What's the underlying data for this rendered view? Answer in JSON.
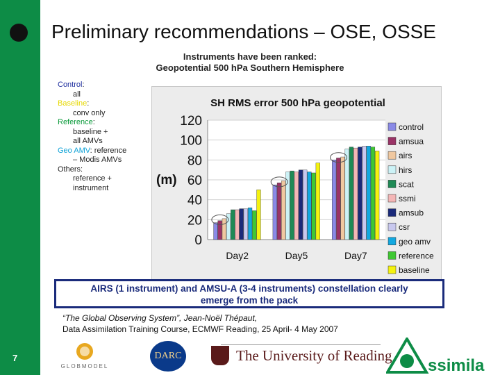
{
  "slide": {
    "title": "Preliminary recommendations – OSE, OSSE",
    "subtitle_line1": "Instruments have been ranked:",
    "subtitle_line2": "Geopotential 500 hPa Southern Hemisphere",
    "page_number": "7",
    "accent_color": "#0d8c46"
  },
  "experiments": [
    {
      "name": "Control",
      "name_color": "#1f2f9f",
      "desc": [
        "all"
      ]
    },
    {
      "name": "Baseline",
      "name_color": "#e6d800",
      "desc": [
        "conv only"
      ]
    },
    {
      "name": "Reference",
      "name_color": "#0a9a3a",
      "desc": [
        "baseline +",
        "all AMVs"
      ]
    },
    {
      "name": "Geo AMV",
      "name_color": "#0aa0d6",
      "desc": [
        "– Modis AMVs"
      ],
      "suffix": ": reference"
    },
    {
      "name": "Others:",
      "name_color": "#222222",
      "desc": [
        "reference +",
        "instrument"
      ]
    }
  ],
  "chart_data": {
    "type": "bar",
    "title": "SH RMS error 500 hPa geopotential",
    "ylabel": "(m)",
    "ylim": [
      0,
      120
    ],
    "yticks": [
      "0",
      "20",
      "40",
      "60",
      "80",
      "100",
      "120"
    ],
    "categories": [
      "Day2",
      "Day5",
      "Day7"
    ],
    "series": [
      {
        "name": "control",
        "color": "#8a8ae6",
        "values": [
          17,
          55,
          80
        ]
      },
      {
        "name": "amsua",
        "color": "#9a3366",
        "values": [
          19,
          57,
          82
        ]
      },
      {
        "name": "airs",
        "color": "#f0c8a0",
        "values": [
          21,
          59,
          83
        ]
      },
      {
        "name": "hirs",
        "color": "#ccf2f6",
        "values": [
          26,
          68,
          91
        ]
      },
      {
        "name": "scat",
        "color": "#1e8a55",
        "values": [
          30,
          69,
          93
        ]
      },
      {
        "name": "ssmi",
        "color": "#f4b6b6",
        "values": [
          30,
          68,
          92
        ]
      },
      {
        "name": "amsub",
        "color": "#1a2a7a",
        "values": [
          31,
          70,
          93
        ]
      },
      {
        "name": "csr",
        "color": "#c8c8ee",
        "values": [
          31,
          70,
          94
        ]
      },
      {
        "name": "geo amv",
        "color": "#12a8e0",
        "values": [
          32,
          68,
          94
        ]
      },
      {
        "name": "reference",
        "color": "#3fc832",
        "values": [
          29,
          67,
          93
        ]
      },
      {
        "name": "baseline",
        "color": "#f4f210",
        "values": [
          50,
          77,
          89
        ]
      }
    ]
  },
  "callout": {
    "line1": "AIRS (1 instrument) and AMSU-A (3-4 instruments) constellation clearly",
    "line2": "emerge from the pack"
  },
  "citation": {
    "line1": "“The Global Observing System”, Jean-Noël Thépaut,",
    "line2": "Data Assimilation Training Course, ECMWF Reading, 25 April- 4 May 2007"
  },
  "logos": {
    "globmodel": "GLOBMODEL",
    "darc": "DARC",
    "reading": "The University of Reading",
    "assimila": "ssimila"
  }
}
